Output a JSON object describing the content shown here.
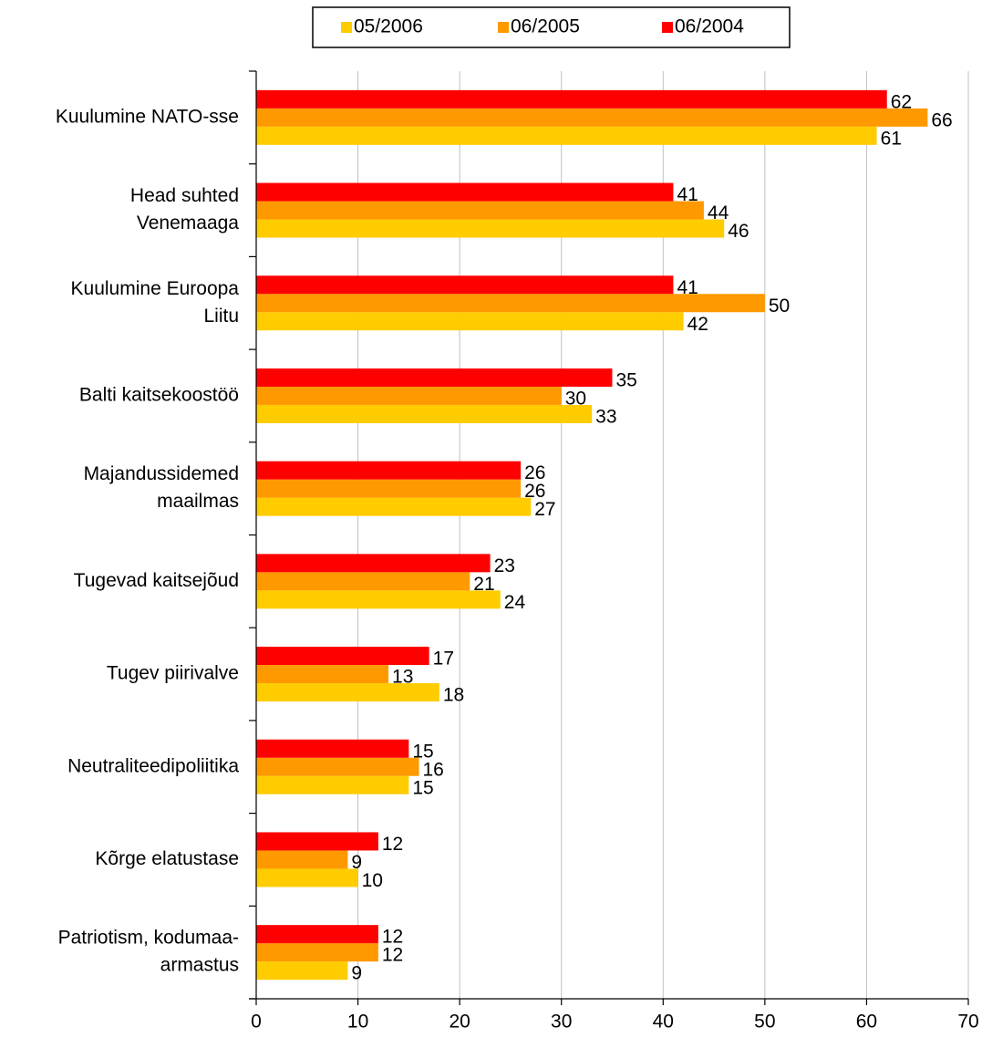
{
  "chart_data": {
    "type": "barh",
    "categories": [
      [
        "Kuulumine NATO-sse"
      ],
      [
        "Head suhted",
        "Venemaaga"
      ],
      [
        "Kuulumine Euroopa",
        "Liitu"
      ],
      [
        "Balti kaitsekoostöö"
      ],
      [
        "Majandussidemed",
        "maailmas"
      ],
      [
        "Tugevad kaitsejõud"
      ],
      [
        "Tugev piirivalve"
      ],
      [
        "Neutraliteedipoliitika"
      ],
      [
        "Kõrge elatustase"
      ],
      [
        "Patriotism, kodumaa-",
        "armastus"
      ]
    ],
    "series": [
      {
        "name": "05/2006",
        "color": "#FFCC00",
        "values": [
          61,
          46,
          42,
          33,
          27,
          24,
          18,
          15,
          10,
          9
        ]
      },
      {
        "name": "06/2005",
        "color": "#FF9900",
        "values": [
          66,
          44,
          50,
          30,
          26,
          21,
          13,
          16,
          9,
          12
        ]
      },
      {
        "name": "06/2004",
        "color": "#FF0000",
        "values": [
          62,
          41,
          41,
          35,
          26,
          23,
          17,
          15,
          12,
          12
        ]
      }
    ],
    "xlim": [
      0,
      70
    ],
    "xticks": [
      0,
      10,
      20,
      30,
      40,
      50,
      60,
      70
    ],
    "grid": true,
    "legend": "top"
  }
}
